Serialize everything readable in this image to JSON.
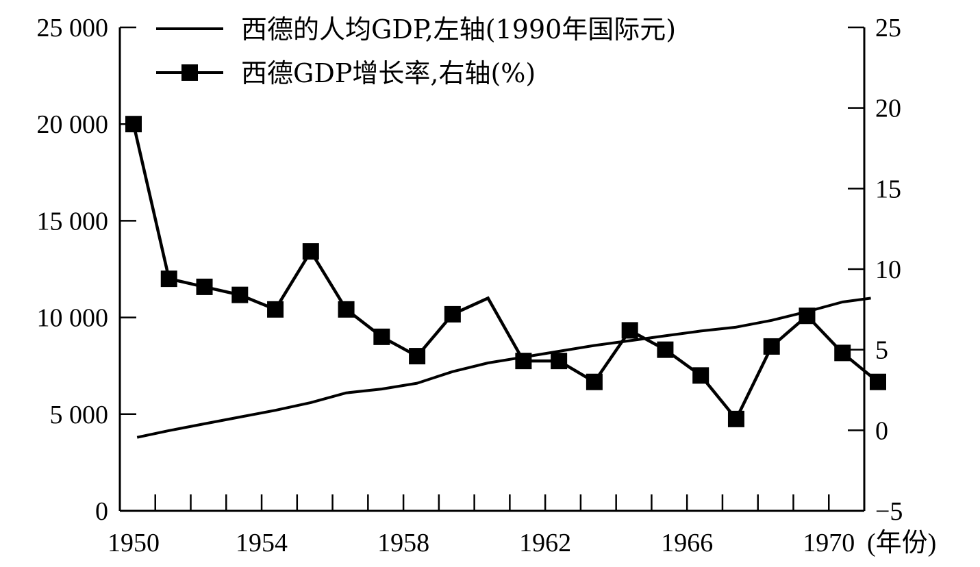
{
  "chart_data": {
    "type": "line",
    "colors": {
      "line": "#000000",
      "background": "#ffffff"
    },
    "x_axis": {
      "min": 1950,
      "max": 1971,
      "ticks": [
        1950,
        1951,
        1952,
        1953,
        1954,
        1955,
        1956,
        1957,
        1958,
        1959,
        1960,
        1961,
        1962,
        1963,
        1964,
        1965,
        1966,
        1967,
        1968,
        1969,
        1970,
        1971
      ],
      "labels": [
        {
          "year": 1950,
          "text": "1950"
        },
        {
          "year": 1954,
          "text": "1954"
        },
        {
          "year": 1958,
          "text": "1958"
        },
        {
          "year": 1962,
          "text": "1962"
        },
        {
          "year": 1966,
          "text": "1966"
        },
        {
          "year": 1970,
          "text": "1970"
        }
      ],
      "unit_label": "(年份)"
    },
    "y_left": {
      "min": 0,
      "max": 25000,
      "ticks": [
        {
          "value": 0,
          "text": "0"
        },
        {
          "value": 5000,
          "text": "5 000"
        },
        {
          "value": 10000,
          "text": "10 000"
        },
        {
          "value": 15000,
          "text": "15 000"
        },
        {
          "value": 20000,
          "text": "20 000"
        },
        {
          "value": 25000,
          "text": "25 000"
        }
      ]
    },
    "y_right": {
      "min": -5,
      "max": 25,
      "ticks": [
        {
          "value": -5,
          "text": "−5"
        },
        {
          "value": 0,
          "text": "0"
        },
        {
          "value": 5,
          "text": "5"
        },
        {
          "value": 10,
          "text": "10"
        },
        {
          "value": 15,
          "text": "15"
        },
        {
          "value": 20,
          "text": "20"
        },
        {
          "value": 25,
          "text": "25"
        }
      ]
    },
    "series": [
      {
        "name": "西德的人均GDP,左轴(1990年国际元)",
        "axis": "left",
        "marker": "none",
        "points": [
          {
            "x": 1950.1,
            "y": 3800
          },
          {
            "x": 1951,
            "y": 4150
          },
          {
            "x": 1952,
            "y": 4500
          },
          {
            "x": 1953,
            "y": 4850
          },
          {
            "x": 1954,
            "y": 5200
          },
          {
            "x": 1955,
            "y": 5600
          },
          {
            "x": 1956,
            "y": 6100
          },
          {
            "x": 1957,
            "y": 6300
          },
          {
            "x": 1958,
            "y": 6600
          },
          {
            "x": 1959,
            "y": 7200
          },
          {
            "x": 1960,
            "y": 7650
          },
          {
            "x": 1961,
            "y": 7950
          },
          {
            "x": 1962,
            "y": 8250
          },
          {
            "x": 1963,
            "y": 8550
          },
          {
            "x": 1964,
            "y": 8800
          },
          {
            "x": 1965,
            "y": 9050
          },
          {
            "x": 1966,
            "y": 9300
          },
          {
            "x": 1967,
            "y": 9500
          },
          {
            "x": 1968,
            "y": 9850
          },
          {
            "x": 1969,
            "y": 10300
          },
          {
            "x": 1970,
            "y": 10800
          },
          {
            "x": 1970.8,
            "y": 11000
          }
        ]
      },
      {
        "name": "西德GDP增长率,右轴(%)",
        "axis": "right",
        "marker": "square",
        "points": [
          {
            "x": 1950,
            "y": 19.0
          },
          {
            "x": 1951,
            "y": 9.4
          },
          {
            "x": 1952,
            "y": 8.9
          },
          {
            "x": 1953,
            "y": 8.4
          },
          {
            "x": 1954,
            "y": 7.5
          },
          {
            "x": 1955,
            "y": 11.1
          },
          {
            "x": 1956,
            "y": 7.5
          },
          {
            "x": 1957,
            "y": 5.8
          },
          {
            "x": 1958,
            "y": 4.6
          },
          {
            "x": 1959,
            "y": 7.2
          },
          {
            "x": 1960,
            "y": 8.2
          },
          {
            "x": 1961,
            "y": 4.3
          },
          {
            "x": 1962,
            "y": 4.3
          },
          {
            "x": 1963,
            "y": 3.0
          },
          {
            "x": 1964,
            "y": 6.2
          },
          {
            "x": 1965,
            "y": 5.0
          },
          {
            "x": 1966,
            "y": 3.4
          },
          {
            "x": 1967,
            "y": 0.7
          },
          {
            "x": 1968,
            "y": 5.2
          },
          {
            "x": 1969,
            "y": 7.1
          },
          {
            "x": 1970,
            "y": 4.8
          },
          {
            "x": 1971,
            "y": 3.0
          }
        ],
        "marked_years": [
          1950,
          1951,
          1952,
          1953,
          1954,
          1955,
          1956,
          1957,
          1958,
          1959,
          1961,
          1962,
          1963,
          1964,
          1965,
          1966,
          1967,
          1968,
          1969,
          1970,
          1971
        ]
      }
    ],
    "legend": [
      {
        "key": "per_capita",
        "marker": "none",
        "text": "西德的人均GDP,左轴(1990年国际元)"
      },
      {
        "key": "growth",
        "marker": "square",
        "text": "西德GDP增长率,右轴(%)"
      }
    ]
  }
}
